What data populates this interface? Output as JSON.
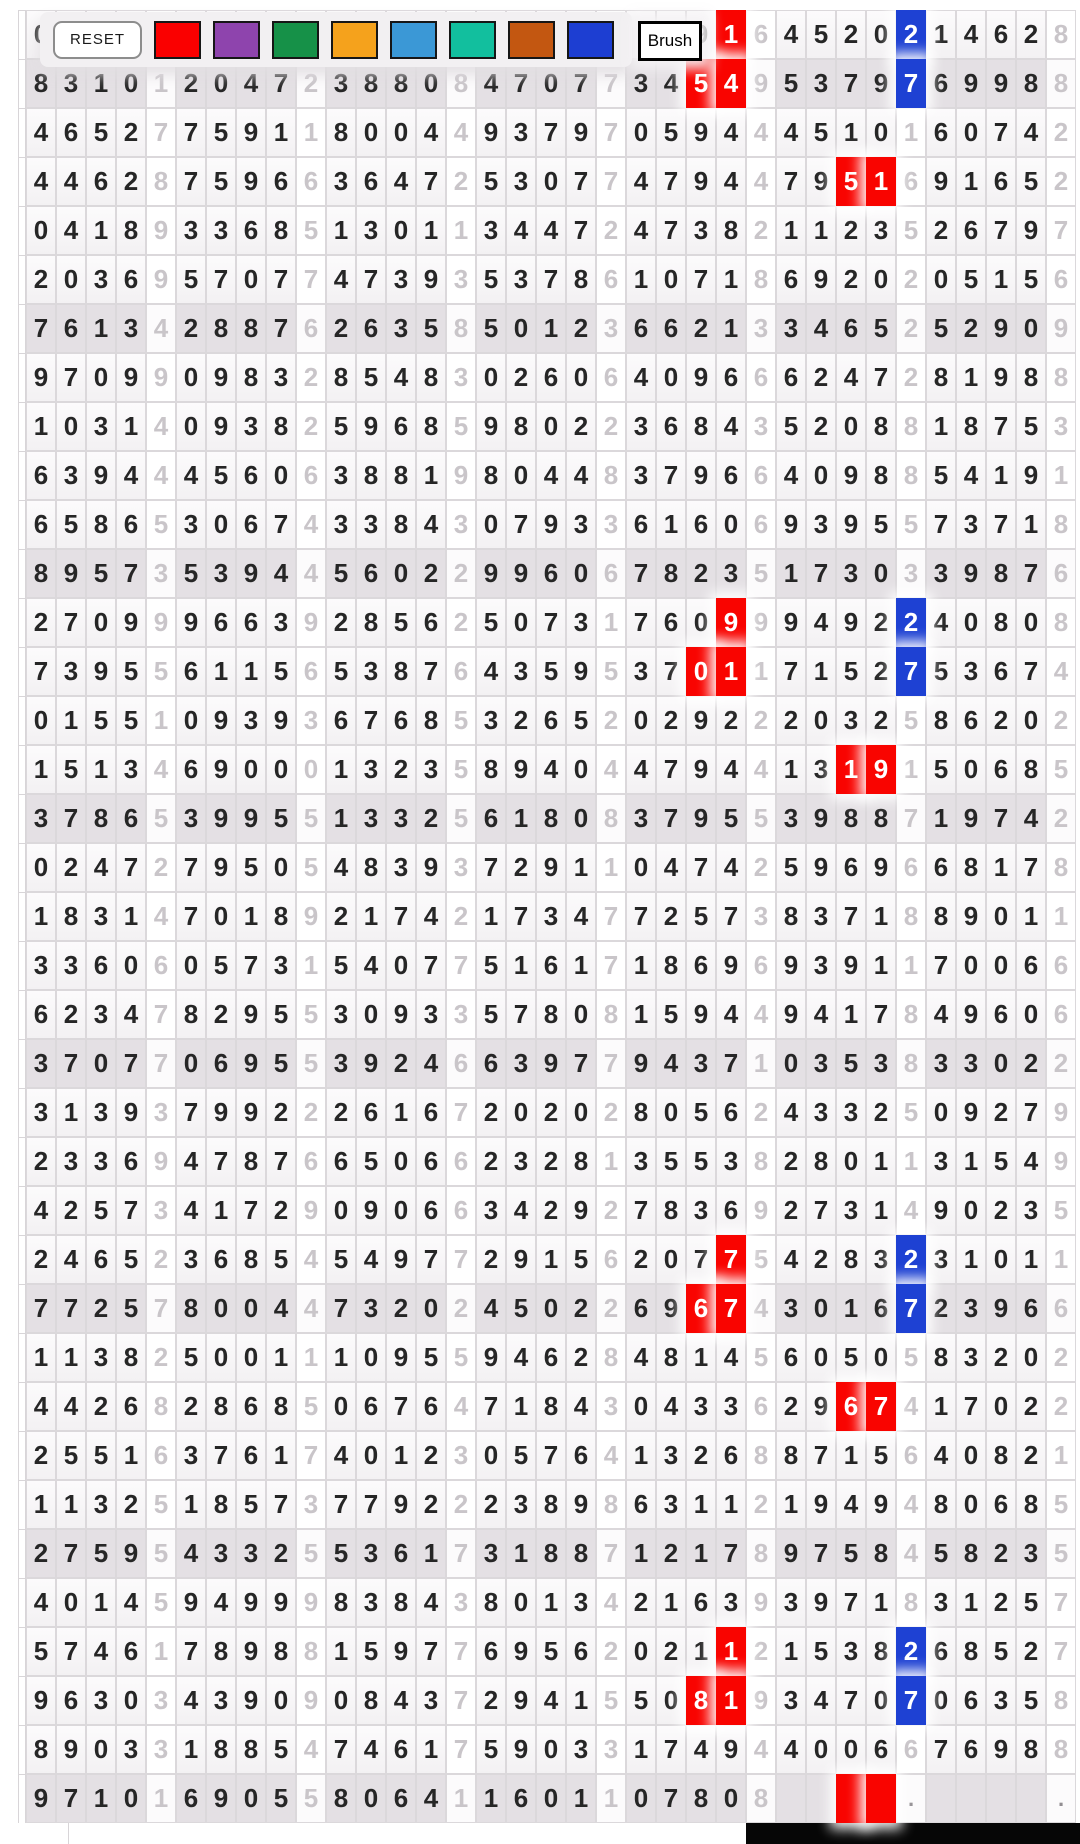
{
  "toolbar": {
    "reset_label": "RESET",
    "brush_label": "Brush",
    "swatches": [
      {
        "name": "red",
        "color": "#fa0000"
      },
      {
        "name": "purple",
        "color": "#8e44ad"
      },
      {
        "name": "green",
        "color": "#169148"
      },
      {
        "name": "orange",
        "color": "#f5a21c"
      },
      {
        "name": "light-blue",
        "color": "#3b98d6"
      },
      {
        "name": "teal",
        "color": "#12bf9e"
      },
      {
        "name": "rust",
        "color": "#c35711"
      },
      {
        "name": "royal-blue",
        "color": "#1d3ed2"
      }
    ]
  },
  "grid": {
    "columns": 35,
    "group_size": 4,
    "highlight_colors": {
      "red": "#f90400",
      "blue": "#1e41d3"
    },
    "shaded_rows": [
      1,
      6,
      11,
      16,
      21,
      26,
      31,
      36
    ],
    "rows": [
      "0                     9164520214628",
      "83101204723880847077345495379769988",
      "46527759118004493797059444510160742",
      "44628759663647253077479447951691652",
      "04189336851301134472473821123526797",
      "20369570774739353786107186920205156",
      "76134288762635850123662133465252909",
      "97099098328548302606409666247281988",
      "10314093825968598022368435208818753",
      "63944456063881980448379664098854191",
      "65865306743384307933616069395573718",
      "89573539445602299606782351730339876",
      "27099966392856250731760999492240808",
      "73955611565387643595370117152753674",
      "01551093936768532652029222032586202",
      "15134690001323589404479441319150685",
      "37865399551332561808379553988719742",
      "02472795054839372911047425969668178",
      "18314701892174217347725738371889011",
      "33606057315407751617186969391170066",
      "62347829553093357808159449417849606",
      "37077069553924663977943710353833022",
      "31393799222616720202805624332509279",
      "23369478766506623281355382801131549",
      "42573417290906634292783692731490235",
      "24652368545497729156207754283231011",
      "77257800447320245022696743016723966",
      "11382500111095594628481456050583202",
      "44268286850676471843043362967417022",
      "25516376174012305764132688715640821",
      "11325185737792223898631121949480685",
      "27595433255361731887121789758458235",
      "40145949998384380134216393971831257",
      "57461789881597769562021121538268527",
      "96303439090843729415508193470706358",
      "89033188547461759033174944006676988",
      "9710169055806411601107808    .    ."
    ],
    "marks": [
      {
        "row": 0,
        "col": 23,
        "color": "red"
      },
      {
        "row": 0,
        "col": 29,
        "color": "blue"
      },
      {
        "row": 1,
        "col": 22,
        "color": "red"
      },
      {
        "row": 1,
        "col": 23,
        "color": "red"
      },
      {
        "row": 1,
        "col": 29,
        "color": "blue"
      },
      {
        "row": 3,
        "col": 27,
        "color": "red"
      },
      {
        "row": 3,
        "col": 28,
        "color": "red"
      },
      {
        "row": 12,
        "col": 23,
        "color": "red"
      },
      {
        "row": 12,
        "col": 29,
        "color": "blue"
      },
      {
        "row": 13,
        "col": 22,
        "color": "red"
      },
      {
        "row": 13,
        "col": 23,
        "color": "red"
      },
      {
        "row": 13,
        "col": 29,
        "color": "blue"
      },
      {
        "row": 15,
        "col": 27,
        "color": "red"
      },
      {
        "row": 15,
        "col": 28,
        "color": "red"
      },
      {
        "row": 25,
        "col": 23,
        "color": "red"
      },
      {
        "row": 25,
        "col": 29,
        "color": "blue"
      },
      {
        "row": 26,
        "col": 22,
        "color": "red"
      },
      {
        "row": 26,
        "col": 23,
        "color": "red"
      },
      {
        "row": 26,
        "col": 29,
        "color": "blue"
      },
      {
        "row": 28,
        "col": 27,
        "color": "red"
      },
      {
        "row": 28,
        "col": 28,
        "color": "red"
      },
      {
        "row": 33,
        "col": 23,
        "color": "red"
      },
      {
        "row": 33,
        "col": 29,
        "color": "blue"
      },
      {
        "row": 34,
        "col": 22,
        "color": "red"
      },
      {
        "row": 34,
        "col": 23,
        "color": "red"
      },
      {
        "row": 34,
        "col": 29,
        "color": "blue"
      },
      {
        "row": 36,
        "col": 27,
        "color": "red"
      },
      {
        "row": 36,
        "col": 28,
        "color": "red"
      }
    ]
  }
}
